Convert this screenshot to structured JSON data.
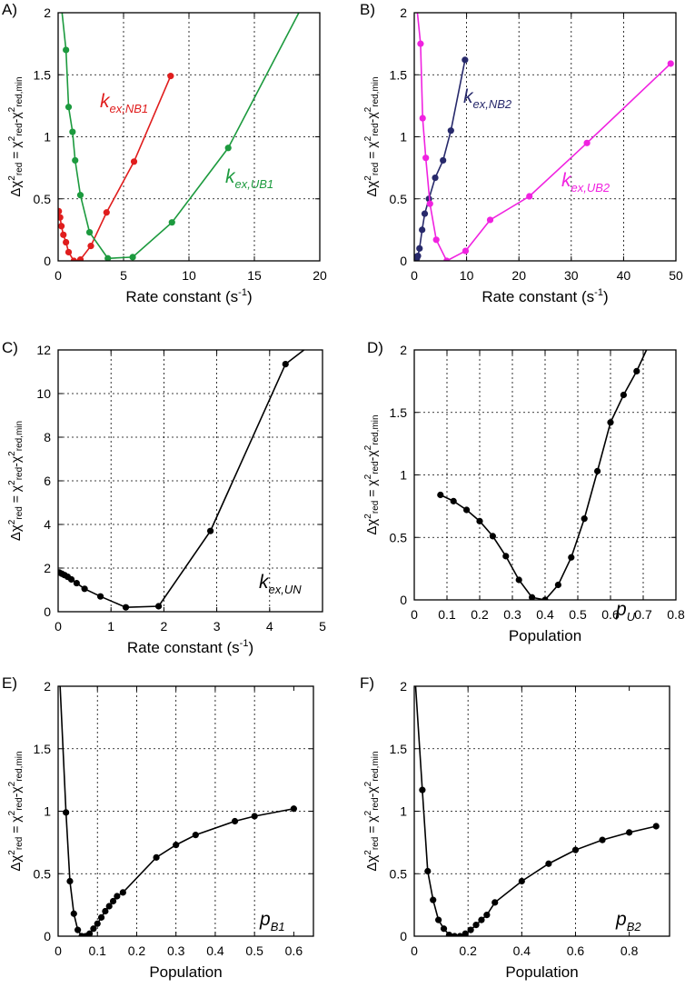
{
  "figure": {
    "ylabel_parts": {
      "delta": "Δχ",
      "sup": "2",
      "red": "red",
      "eq": " = χ",
      "sup2": "2",
      "red2": "red",
      "minus": "-χ",
      "sup3": "2",
      "redmin": "red,min"
    }
  },
  "chart_data": [
    {
      "type": "line",
      "panel_label": "A)",
      "xlabel": "Rate constant (s",
      "xlabel_sup": "-1",
      "xlabel_close": ")",
      "xlim": [
        0,
        20
      ],
      "ylim": [
        0,
        2
      ],
      "xticks": [
        0,
        5,
        10,
        15,
        20
      ],
      "yticks": [
        0,
        0.5,
        1,
        1.5,
        2
      ],
      "xtick_labels": [
        "0",
        "5",
        "10",
        "15",
        "20"
      ],
      "ytick_labels": [
        "0",
        "0.5",
        "1",
        "1.5",
        "2"
      ],
      "grid": true,
      "series": [
        {
          "name": "k_ex,NB1",
          "label_main": "k",
          "label_sub": "ex,NB1",
          "color": "#e01d1d",
          "x": [
            0.05,
            0.15,
            0.25,
            0.4,
            0.6,
            0.8,
            1.2,
            1.7,
            2.5,
            3.7,
            5.8,
            8.6
          ],
          "y": [
            0.4,
            0.35,
            0.28,
            0.21,
            0.15,
            0.07,
            0.0,
            0.01,
            0.12,
            0.39,
            0.8,
            1.49
          ]
        },
        {
          "name": "k_ex,UB1",
          "label_main": "k",
          "label_sub": "ex,UB1",
          "color": "#1c9a3e",
          "x": [
            0.3,
            0.6,
            0.8,
            1.1,
            1.3,
            1.7,
            2.4,
            3.8,
            5.7,
            8.7,
            13.0,
            18.4
          ],
          "y": [
            2.0,
            1.7,
            1.24,
            1.04,
            0.81,
            0.53,
            0.23,
            0.02,
            0.03,
            0.31,
            0.91,
            2.0
          ]
        }
      ]
    },
    {
      "type": "line",
      "panel_label": "B)",
      "xlabel": "Rate constant (s",
      "xlabel_sup": "-1",
      "xlabel_close": ")",
      "xlim": [
        0,
        50
      ],
      "ylim": [
        0,
        2
      ],
      "xticks": [
        0,
        10,
        20,
        30,
        40,
        50
      ],
      "yticks": [
        0,
        0.5,
        1,
        1.5,
        2
      ],
      "xtick_labels": [
        "0",
        "10",
        "20",
        "30",
        "40",
        "50"
      ],
      "ytick_labels": [
        "0",
        "0.5",
        "1",
        "1.5",
        "2"
      ],
      "grid": true,
      "series": [
        {
          "name": "k_ex,NB2",
          "label_main": "k",
          "label_sub": "ex,NB2",
          "color": "#27296b",
          "x": [
            0.1,
            0.3,
            0.5,
            0.7,
            1.0,
            1.5,
            2.0,
            2.8,
            4.0,
            5.5,
            7.0,
            9.7
          ],
          "y": [
            0.03,
            0.01,
            0.02,
            0.04,
            0.1,
            0.25,
            0.38,
            0.5,
            0.67,
            0.81,
            1.05,
            1.62
          ]
        },
        {
          "name": "k_ex,UB2",
          "label_main": "k",
          "label_sub": "ex,UB2",
          "color": "#f022e0",
          "x": [
            0.6,
            1.2,
            1.6,
            2.2,
            3.0,
            4.2,
            6.2,
            9.8,
            14.5,
            22.0,
            33.0,
            49.0
          ],
          "y": [
            2.0,
            1.75,
            1.15,
            0.83,
            0.46,
            0.17,
            0.0,
            0.08,
            0.33,
            0.52,
            0.95,
            1.59
          ]
        }
      ]
    },
    {
      "type": "line",
      "panel_label": "C)",
      "xlabel": "Rate constant (s",
      "xlabel_sup": "-1",
      "xlabel_close": ")",
      "xlim": [
        0,
        5
      ],
      "ylim": [
        0,
        12
      ],
      "xticks": [
        0,
        1,
        2,
        3,
        4,
        5
      ],
      "yticks": [
        0,
        2,
        4,
        6,
        8,
        10,
        12
      ],
      "xtick_labels": [
        "0",
        "1",
        "2",
        "3",
        "4",
        "5"
      ],
      "ytick_labels": [
        "0",
        "2",
        "4",
        "6",
        "8",
        "10",
        "12"
      ],
      "grid": true,
      "annotation": {
        "main": "k",
        "sub": "ex,UN"
      },
      "series": [
        {
          "name": "k_ex,UN",
          "color": "#000000",
          "x": [
            0.02,
            0.07,
            0.12,
            0.18,
            0.25,
            0.35,
            0.5,
            0.8,
            1.28,
            1.9,
            2.88,
            4.3,
            4.65
          ],
          "y": [
            1.8,
            1.74,
            1.68,
            1.6,
            1.48,
            1.31,
            1.05,
            0.7,
            0.2,
            0.25,
            3.7,
            11.35,
            12.0
          ]
        }
      ]
    },
    {
      "type": "line",
      "panel_label": "D)",
      "xlabel": "Population",
      "xlim": [
        0,
        0.8
      ],
      "ylim": [
        0,
        2
      ],
      "xticks": [
        0,
        0.1,
        0.2,
        0.3,
        0.4,
        0.5,
        0.6,
        0.7,
        0.8
      ],
      "yticks": [
        0,
        0.5,
        1,
        1.5,
        2
      ],
      "xtick_labels": [
        "0",
        "0.1",
        "0.2",
        "0.3",
        "0.4",
        "0.5",
        "0.6",
        "0.7",
        "0.8"
      ],
      "ytick_labels": [
        "0",
        "0.5",
        "1",
        "1.5",
        "2"
      ],
      "grid": true,
      "annotation": {
        "main": "p",
        "sub": "U"
      },
      "series": [
        {
          "name": "p_U",
          "color": "#000000",
          "x": [
            0.08,
            0.12,
            0.16,
            0.2,
            0.24,
            0.28,
            0.32,
            0.36,
            0.4,
            0.44,
            0.48,
            0.52,
            0.56,
            0.6,
            0.64,
            0.68,
            0.71
          ],
          "y": [
            0.84,
            0.79,
            0.72,
            0.63,
            0.51,
            0.35,
            0.16,
            0.02,
            0.0,
            0.12,
            0.34,
            0.65,
            1.03,
            1.42,
            1.64,
            1.83,
            2.0
          ]
        }
      ]
    },
    {
      "type": "line",
      "panel_label": "E)",
      "xlabel": "Population",
      "xlim": [
        0,
        0.65
      ],
      "ylim": [
        0,
        2
      ],
      "xticks": [
        0,
        0.1,
        0.2,
        0.3,
        0.4,
        0.5,
        0.6
      ],
      "yticks": [
        0,
        0.5,
        1,
        1.5,
        2
      ],
      "xtick_labels": [
        "0",
        "0.1",
        "0.2",
        "0.3",
        "0.4",
        "0.5",
        "0.6"
      ],
      "ytick_labels": [
        "0",
        "0.5",
        "1",
        "1.5",
        "2"
      ],
      "grid": true,
      "annotation": {
        "main": "p",
        "sub": "B1"
      },
      "series": [
        {
          "name": "p_B1",
          "color": "#000000",
          "x": [
            0.005,
            0.02,
            0.03,
            0.04,
            0.05,
            0.06,
            0.07,
            0.08,
            0.09,
            0.1,
            0.11,
            0.12,
            0.13,
            0.14,
            0.15,
            0.165,
            0.25,
            0.3,
            0.35,
            0.45,
            0.5,
            0.6
          ],
          "y": [
            2.0,
            0.99,
            0.44,
            0.18,
            0.05,
            0.0,
            0.0,
            0.02,
            0.06,
            0.1,
            0.15,
            0.2,
            0.24,
            0.28,
            0.32,
            0.35,
            0.63,
            0.73,
            0.81,
            0.92,
            0.96,
            1.02
          ]
        }
      ]
    },
    {
      "type": "line",
      "panel_label": "F)",
      "xlabel": "Population",
      "xlim": [
        0,
        0.95
      ],
      "ylim": [
        0,
        2
      ],
      "xticks": [
        0,
        0.2,
        0.4,
        0.6,
        0.8
      ],
      "yticks": [
        0,
        0.5,
        1,
        1.5,
        2
      ],
      "xtick_labels": [
        "0",
        "0.2",
        "0.4",
        "0.6",
        "0.8"
      ],
      "ytick_labels": [
        "0",
        "0.5",
        "1",
        "1.5",
        "2"
      ],
      "grid": true,
      "annotation": {
        "main": "p",
        "sub": "B2"
      },
      "series": [
        {
          "name": "p_B2",
          "color": "#000000",
          "x": [
            0.005,
            0.03,
            0.05,
            0.07,
            0.09,
            0.11,
            0.13,
            0.15,
            0.17,
            0.19,
            0.21,
            0.23,
            0.25,
            0.27,
            0.3,
            0.4,
            0.5,
            0.6,
            0.7,
            0.8,
            0.9
          ],
          "y": [
            2.0,
            1.17,
            0.52,
            0.29,
            0.13,
            0.06,
            0.01,
            0.0,
            0.0,
            0.02,
            0.05,
            0.09,
            0.13,
            0.17,
            0.27,
            0.44,
            0.58,
            0.69,
            0.77,
            0.83,
            0.88
          ]
        }
      ]
    }
  ]
}
